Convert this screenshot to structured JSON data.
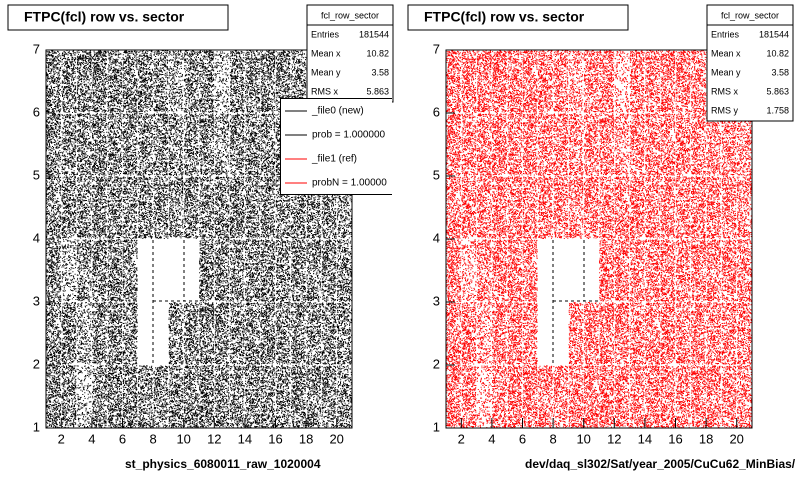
{
  "chart_data": [
    {
      "type": "scatter2d",
      "title": "FTPC(fcl) row vs. sector",
      "xlabel": "st_physics_6080011_raw_1020004",
      "color": "#000000",
      "xlim": [
        1,
        21
      ],
      "ylim": [
        1,
        7
      ],
      "xticks": [
        2,
        4,
        6,
        8,
        10,
        12,
        14,
        16,
        18,
        20
      ],
      "yticks": [
        1,
        2,
        3,
        4,
        5,
        6,
        7
      ],
      "xbins": [
        1,
        2,
        3,
        4,
        5,
        6,
        7,
        8,
        9,
        10,
        11,
        12,
        13,
        14,
        15,
        16,
        17,
        18,
        19,
        20,
        21
      ],
      "ybins": [
        1,
        2,
        3,
        4,
        5,
        6,
        7
      ],
      "z": [
        [
          1700,
          1600,
          700,
          1500,
          1800,
          1700,
          1500,
          1400,
          1600,
          1700,
          1800,
          1600,
          1500,
          1700,
          1600,
          1500,
          1700,
          1600,
          1500,
          1400
        ],
        [
          1600,
          1700,
          1000,
          1600,
          1700,
          1500,
          0,
          0,
          1500,
          1600,
          1700,
          1600,
          1500,
          1600,
          1700,
          1500,
          1600,
          1500,
          1600,
          1500
        ],
        [
          1600,
          800,
          1400,
          1600,
          1700,
          1500,
          0,
          0,
          0,
          0,
          1700,
          1600,
          1500,
          1600,
          1700,
          1500,
          1600,
          1500,
          1600,
          1500
        ],
        [
          1500,
          1600,
          1500,
          1700,
          1600,
          1500,
          1600,
          1500,
          1400,
          1600,
          1500,
          1600,
          1700,
          1500,
          1600,
          1500,
          1700,
          1600,
          1500,
          1300
        ],
        [
          1600,
          1500,
          1600,
          1700,
          1500,
          1600,
          1500,
          1600,
          1400,
          1500,
          1600,
          1100,
          1500,
          1600,
          1500,
          1600,
          1500,
          1400,
          1500,
          1300
        ],
        [
          1700,
          1600,
          1700,
          1800,
          1600,
          1700,
          1600,
          1500,
          1000,
          1500,
          1700,
          700,
          1600,
          1500,
          1700,
          1600,
          1500,
          1400,
          1500,
          1300
        ]
      ],
      "stats_title": "fcl_row_sector",
      "stats": [
        {
          "label": "Entries",
          "value": 181544
        },
        {
          "label": "Mean x",
          "value": 10.82
        },
        {
          "label": "Mean y",
          "value": 3.58
        },
        {
          "label": "RMS x",
          "value": 5.863
        }
      ],
      "legend": [
        {
          "label": "_file0 (new)",
          "color": "#000000"
        },
        {
          "label": "prob = 1.000000",
          "color": "#000000"
        },
        {
          "label": "_file1 (ref)",
          "color": "#ff0000"
        },
        {
          "label": "probN = 1.00000",
          "color": "#ff0000"
        }
      ]
    },
    {
      "type": "scatter2d",
      "title": "FTPC(fcl) row vs. sector",
      "xlabel": "dev/daq_sl302/Sat/year_2005/CuCu62_MinBias/",
      "color": "#ff0000",
      "xlim": [
        1,
        21
      ],
      "ylim": [
        1,
        7
      ],
      "xticks": [
        2,
        4,
        6,
        8,
        10,
        12,
        14,
        16,
        18,
        20
      ],
      "yticks": [
        1,
        2,
        3,
        4,
        5,
        6,
        7
      ],
      "xbins": [
        1,
        2,
        3,
        4,
        5,
        6,
        7,
        8,
        9,
        10,
        11,
        12,
        13,
        14,
        15,
        16,
        17,
        18,
        19,
        20,
        21
      ],
      "ybins": [
        1,
        2,
        3,
        4,
        5,
        6,
        7
      ],
      "z": [
        [
          1700,
          1600,
          700,
          1500,
          1800,
          1700,
          1500,
          1400,
          1600,
          1700,
          1800,
          1600,
          1500,
          1700,
          1600,
          1500,
          1700,
          1600,
          1500,
          1400
        ],
        [
          1600,
          1700,
          1000,
          1600,
          1700,
          1500,
          0,
          0,
          1500,
          1600,
          1700,
          1600,
          1500,
          1600,
          1700,
          1500,
          1600,
          1500,
          1600,
          1500
        ],
        [
          1600,
          800,
          1400,
          1600,
          1700,
          1500,
          0,
          0,
          0,
          0,
          1700,
          1600,
          1500,
          1600,
          1700,
          1500,
          1600,
          1500,
          1600,
          1500
        ],
        [
          1500,
          1600,
          1500,
          1700,
          1600,
          1500,
          1600,
          1500,
          1400,
          1600,
          1500,
          1600,
          1700,
          1500,
          1600,
          1500,
          1700,
          1600,
          1500,
          1300
        ],
        [
          1600,
          1500,
          1600,
          1700,
          1500,
          1600,
          1500,
          1600,
          1400,
          1500,
          1600,
          1100,
          1500,
          1600,
          1500,
          1600,
          1500,
          1400,
          1500,
          1300
        ],
        [
          1700,
          1600,
          1700,
          1800,
          1600,
          1700,
          1600,
          1500,
          1000,
          1500,
          1700,
          700,
          1600,
          1500,
          1700,
          1600,
          1500,
          1400,
          1500,
          1300
        ]
      ],
      "stats_title": "fcl_row_sector",
      "stats": [
        {
          "label": "Entries",
          "value": 181544
        },
        {
          "label": "Mean x",
          "value": 10.82
        },
        {
          "label": "Mean y",
          "value": 3.58
        },
        {
          "label": "RMS x",
          "value": 5.863
        },
        {
          "label": "RMS y",
          "value": 1.758
        }
      ]
    }
  ]
}
